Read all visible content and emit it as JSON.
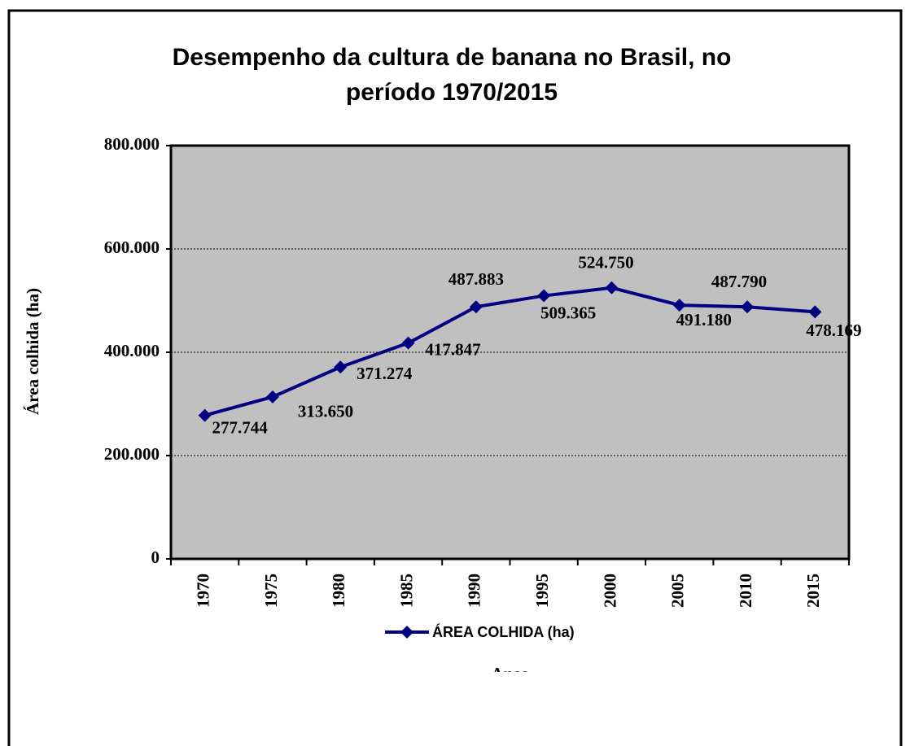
{
  "chart_data": {
    "type": "line",
    "title": [
      "Desempenho da cultura de banana no Brasil,  no",
      "período 1970/2015"
    ],
    "x_label": "Anos",
    "y_label": "Área colhida  (ha)",
    "categories": [
      "1970",
      "1975",
      "1980",
      "1985",
      "1990",
      "1995",
      "2000",
      "2005",
      "2010",
      "2015"
    ],
    "series": [
      {
        "name": "ÁREA COLHIDA (ha)",
        "color": "#000080",
        "values": [
          277744,
          313650,
          371274,
          417847,
          487883,
          509365,
          524750,
          491180,
          487790,
          478169
        ],
        "value_labels": [
          "277.744",
          "313.650",
          "371.274",
          "417.847",
          "487.883",
          "509.365",
          "524.750",
          "491.180",
          "487.790",
          "478.169"
        ]
      }
    ],
    "ylim": [
      0,
      800000
    ],
    "yticks": [
      0,
      {
        "value": 200000,
        "label": "200.000"
      },
      {
        "value": 400000,
        "label": "400.000"
      },
      {
        "value": 600000,
        "label": "600.000"
      },
      {
        "value": 800000,
        "label": "800.000"
      }
    ],
    "grid": true,
    "plot_background": "#c0c0c0",
    "legend": "bottom"
  }
}
